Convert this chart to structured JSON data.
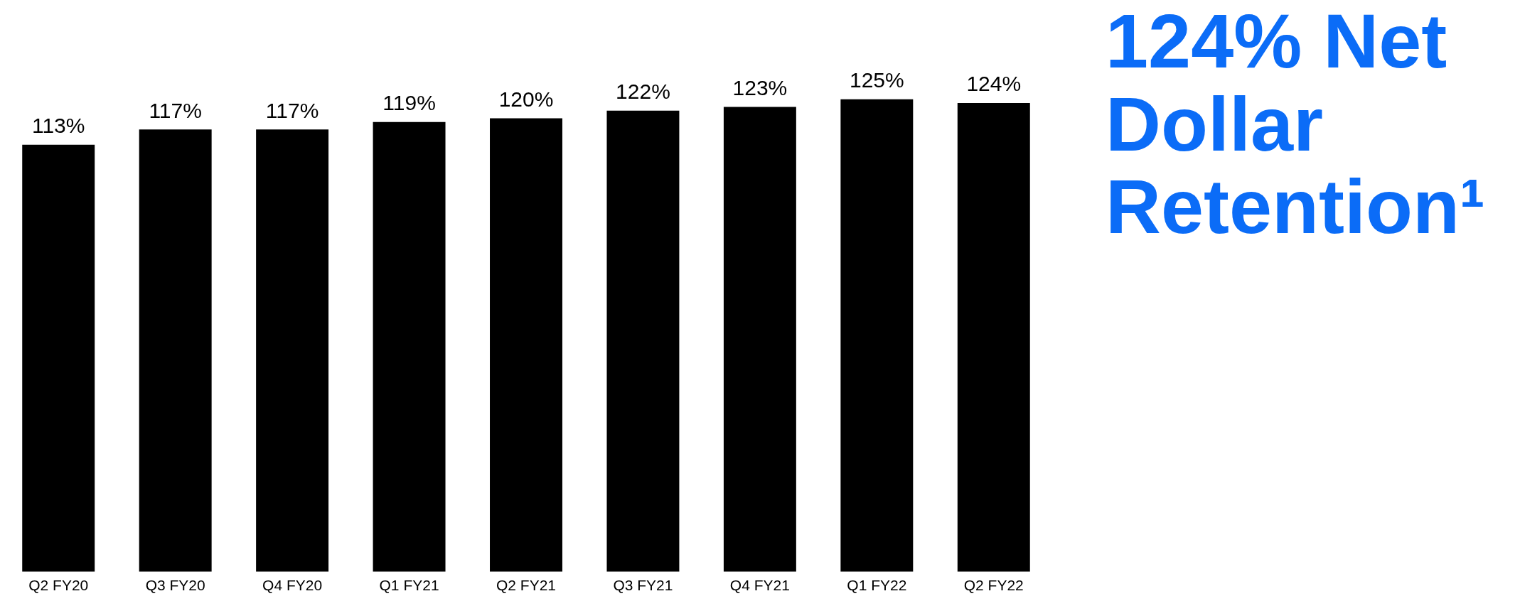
{
  "chart_data": {
    "type": "bar",
    "title": "124% Net Dollar Retention¹",
    "categories": [
      "Q2 FY20",
      "Q3 FY20",
      "Q4 FY20",
      "Q1 FY21",
      "Q2 FY21",
      "Q3 FY21",
      "Q4 FY21",
      "Q1 FY22",
      "Q2 FY22"
    ],
    "values": [
      113,
      117,
      117,
      119,
      120,
      122,
      123,
      125,
      124
    ],
    "value_labels": [
      "113%",
      "117%",
      "117%",
      "119%",
      "120%",
      "122%",
      "123%",
      "125%",
      "124%"
    ],
    "color": "#000000",
    "grid": false,
    "legend": false,
    "tick_labels": "x"
  }
}
